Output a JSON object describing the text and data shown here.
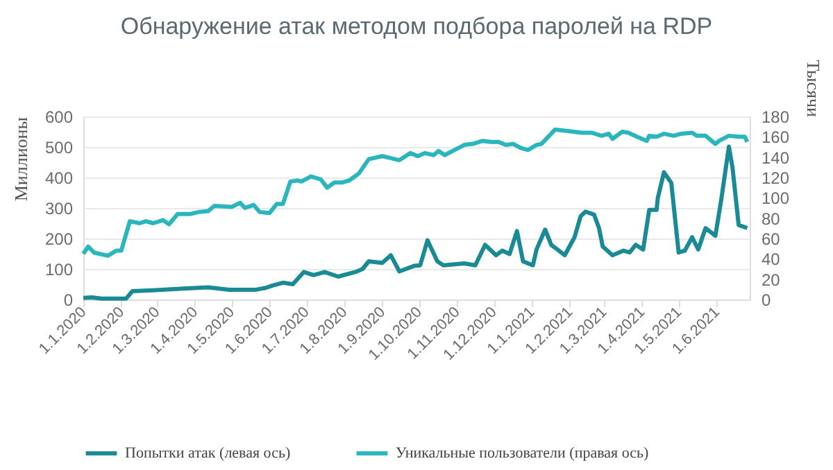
{
  "chart_data": {
    "type": "line",
    "title": "Обнаружение атак методом подбора паролей на RDP",
    "ylabel": "Миллионы",
    "y2label": "Тысячи",
    "xlim": [
      "2020-01-01",
      "2021-06-28"
    ],
    "xticks": [
      {
        "value": "2020-01-01",
        "label": "1.1.2020"
      },
      {
        "value": "2020-02-01",
        "label": "1.2.2020"
      },
      {
        "value": "2020-03-01",
        "label": "1.3.2020"
      },
      {
        "value": "2020-04-01",
        "label": "1.4.2020"
      },
      {
        "value": "2020-05-01",
        "label": "1.5.2020"
      },
      {
        "value": "2020-06-01",
        "label": "1.6.2020"
      },
      {
        "value": "2020-07-01",
        "label": "1.7.2020"
      },
      {
        "value": "2020-08-01",
        "label": "1.8.2020"
      },
      {
        "value": "2020-09-01",
        "label": "1.9.2020"
      },
      {
        "value": "2020-10-01",
        "label": "1.10.2020"
      },
      {
        "value": "2020-11-01",
        "label": "1.11.2020"
      },
      {
        "value": "2020-12-01",
        "label": "1.12.2020"
      },
      {
        "value": "2021-01-01",
        "label": "1.1.2021"
      },
      {
        "value": "2021-02-01",
        "label": "1.2.2021"
      },
      {
        "value": "2021-03-01",
        "label": "1.3.2021"
      },
      {
        "value": "2021-04-01",
        "label": "1.4.2021"
      },
      {
        "value": "2021-05-01",
        "label": "1.5.2021"
      },
      {
        "value": "2021-06-01",
        "label": "1.6.2021"
      }
    ],
    "ylim": [
      0,
      600
    ],
    "yticks": [
      0,
      100,
      200,
      300,
      400,
      500,
      600
    ],
    "y2lim": [
      0,
      180
    ],
    "y2ticks": [
      0,
      20,
      40,
      60,
      80,
      100,
      120,
      140,
      160,
      180
    ],
    "grid": "y",
    "legend": "bottom",
    "marker": "none",
    "line_style": "solid",
    "series": [
      {
        "name": "Попытки атак (левая ось)",
        "color": "#1a8a94",
        "axis": "y",
        "x": [
          "2020-01-01",
          "2020-01-08",
          "2020-01-16",
          "2020-02-01",
          "2020-02-05",
          "2020-02-10",
          "2020-02-27",
          "2020-03-20",
          "2020-04-12",
          "2020-04-29",
          "2020-05-21",
          "2020-05-29",
          "2020-06-03",
          "2020-06-12",
          "2020-06-20",
          "2020-06-29",
          "2020-07-07",
          "2020-07-16",
          "2020-07-27",
          "2020-08-10",
          "2020-08-16",
          "2020-08-21",
          "2020-09-01",
          "2020-09-08",
          "2020-09-15",
          "2020-09-27",
          "2020-10-02",
          "2020-10-08",
          "2020-10-16",
          "2020-10-21",
          "2020-11-07",
          "2020-11-16",
          "2020-11-24",
          "2020-12-03",
          "2020-12-08",
          "2020-12-14",
          "2020-12-20",
          "2020-12-25",
          "2021-01-02",
          "2021-01-05",
          "2021-01-12",
          "2021-01-17",
          "2021-01-22",
          "2021-01-28",
          "2021-02-05",
          "2021-02-10",
          "2021-02-14",
          "2021-02-21",
          "2021-02-25",
          "2021-02-28",
          "2021-03-08",
          "2021-03-17",
          "2021-03-22",
          "2021-03-27",
          "2021-04-02",
          "2021-04-07",
          "2021-04-13",
          "2021-04-14",
          "2021-04-19",
          "2021-04-25",
          "2021-05-01",
          "2021-05-06",
          "2021-05-12",
          "2021-05-17",
          "2021-05-23",
          "2021-05-31",
          "2021-06-05",
          "2021-06-11",
          "2021-06-14",
          "2021-06-19",
          "2021-06-26"
        ],
        "values": [
          5,
          7,
          3,
          3,
          3,
          27,
          30,
          35,
          40,
          32,
          32,
          38,
          45,
          55,
          50,
          90,
          80,
          90,
          75,
          90,
          100,
          125,
          120,
          145,
          92,
          110,
          112,
          194,
          125,
          112,
          118,
          112,
          179,
          145,
          160,
          149,
          224,
          125,
          112,
          164,
          229,
          179,
          164,
          145,
          204,
          273,
          288,
          278,
          234,
          174,
          145,
          160,
          154,
          179,
          164,
          294,
          294,
          333,
          417,
          382,
          154,
          160,
          204,
          164,
          234,
          209,
          333,
          501,
          431,
          244,
          234
        ]
      },
      {
        "name": "Уникальные пользователи (правая ось)",
        "color": "#2bb5bd",
        "axis": "y2",
        "x": [
          "2020-01-01",
          "2020-01-05",
          "2020-01-10",
          "2020-01-21",
          "2020-01-28",
          "2020-02-01",
          "2020-02-08",
          "2020-02-16",
          "2020-02-21",
          "2020-02-27",
          "2020-03-06",
          "2020-03-11",
          "2020-03-18",
          "2020-03-24",
          "2020-03-28",
          "2020-04-04",
          "2020-04-12",
          "2020-04-17",
          "2020-05-01",
          "2020-05-08",
          "2020-05-12",
          "2020-05-19",
          "2020-05-24",
          "2020-06-01",
          "2020-06-07",
          "2020-06-12",
          "2020-06-18",
          "2020-06-24",
          "2020-06-27",
          "2020-07-05",
          "2020-07-13",
          "2020-07-18",
          "2020-07-24",
          "2020-07-30",
          "2020-08-05",
          "2020-08-13",
          "2020-08-21",
          "2020-09-01",
          "2020-09-15",
          "2020-09-24",
          "2020-09-30",
          "2020-10-06",
          "2020-10-13",
          "2020-10-17",
          "2020-10-22",
          "2020-10-30",
          "2020-11-07",
          "2020-11-14",
          "2020-11-22",
          "2020-11-29",
          "2020-12-05",
          "2020-12-11",
          "2020-12-17",
          "2020-12-23",
          "2020-12-29",
          "2021-01-05",
          "2021-01-09",
          "2021-01-20",
          "2021-01-28",
          "2021-02-11",
          "2021-02-19",
          "2021-02-27",
          "2021-03-05",
          "2021-03-08",
          "2021-03-16",
          "2021-03-21",
          "2021-03-28",
          "2021-04-05",
          "2021-04-07",
          "2021-04-13",
          "2021-04-19",
          "2021-04-27",
          "2021-05-03",
          "2021-05-12",
          "2021-05-16",
          "2021-05-23",
          "2021-05-31",
          "2021-06-03",
          "2021-06-11",
          "2021-06-19",
          "2021-06-24",
          "2021-06-26"
        ],
        "values": [
          45,
          52,
          46,
          43,
          48,
          48,
          77,
          75,
          77,
          75,
          78,
          74,
          84,
          84,
          84,
          86,
          87,
          92,
          91,
          95,
          90,
          93,
          86,
          85,
          94,
          94,
          116,
          117,
          116,
          121,
          118,
          110,
          115,
          115,
          117,
          124,
          138,
          141,
          137,
          144,
          141,
          144,
          142,
          146,
          142,
          147,
          152,
          153,
          156,
          155,
          155,
          152,
          153,
          149,
          147,
          152,
          153,
          167,
          166,
          164,
          164,
          161,
          163,
          158,
          165,
          164,
          160,
          156,
          161,
          160,
          163,
          161,
          163,
          164,
          161,
          161,
          153,
          156,
          161,
          160,
          160,
          155
        ]
      }
    ]
  }
}
